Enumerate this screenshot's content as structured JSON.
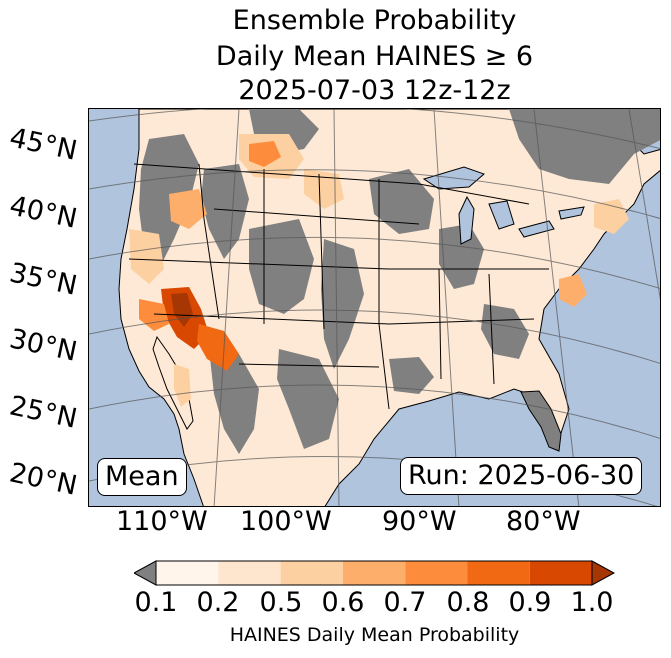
{
  "title": {
    "line1": "Ensemble Probability",
    "line2": "Daily Mean HAINES ≥ 6",
    "line3": "2025-07-03 12z-12z"
  },
  "map": {
    "latitude_labels": [
      "45°N",
      "40°N",
      "35°N",
      "30°N",
      "25°N",
      "20°N"
    ],
    "longitude_labels": [
      "110°W",
      "100°W",
      "90°W",
      "80°W"
    ],
    "ocean_color": "#b0c4de",
    "masked_color": "#808080",
    "land_background": "#fde9d6"
  },
  "boxes": {
    "stat": "Mean",
    "run": "Run: 2025-06-30"
  },
  "colorbar": {
    "ticks": [
      "0.1",
      "0.2",
      "0.5",
      "0.6",
      "0.7",
      "0.8",
      "0.9",
      "1.0"
    ],
    "colors": [
      "#fff5eb",
      "#fee6ce",
      "#fdd0a2",
      "#fdae6b",
      "#fd8d3c",
      "#f16913",
      "#d94801",
      "#a63603"
    ],
    "under_color": "#808080",
    "label": "HAINES Daily Mean Probability"
  }
}
